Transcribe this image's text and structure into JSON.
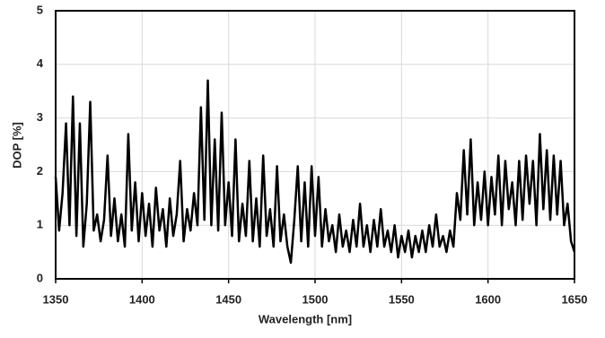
{
  "chart_data": {
    "type": "line",
    "x_label": "Wavelength [nm]",
    "y_label": "DOP [%]",
    "x": [
      1350,
      1352,
      1354,
      1356,
      1358,
      1360,
      1362,
      1364,
      1366,
      1368,
      1370,
      1372,
      1374,
      1376,
      1378,
      1380,
      1382,
      1384,
      1386,
      1388,
      1390,
      1392,
      1394,
      1396,
      1398,
      1400,
      1402,
      1404,
      1406,
      1408,
      1410,
      1412,
      1414,
      1416,
      1418,
      1420,
      1422,
      1424,
      1426,
      1428,
      1430,
      1432,
      1434,
      1436,
      1438,
      1440,
      1442,
      1444,
      1446,
      1448,
      1450,
      1452,
      1454,
      1456,
      1458,
      1460,
      1462,
      1464,
      1466,
      1468,
      1470,
      1472,
      1474,
      1476,
      1478,
      1480,
      1482,
      1484,
      1486,
      1488,
      1490,
      1492,
      1494,
      1496,
      1498,
      1500,
      1502,
      1504,
      1506,
      1508,
      1510,
      1512,
      1514,
      1516,
      1518,
      1520,
      1522,
      1524,
      1526,
      1528,
      1530,
      1532,
      1534,
      1536,
      1538,
      1540,
      1542,
      1544,
      1546,
      1548,
      1550,
      1552,
      1554,
      1556,
      1558,
      1560,
      1562,
      1564,
      1566,
      1568,
      1570,
      1572,
      1574,
      1576,
      1578,
      1580,
      1582,
      1584,
      1586,
      1588,
      1590,
      1592,
      1594,
      1596,
      1598,
      1600,
      1602,
      1604,
      1606,
      1608,
      1610,
      1612,
      1614,
      1616,
      1618,
      1620,
      1622,
      1624,
      1626,
      1628,
      1630,
      1632,
      1634,
      1636,
      1638,
      1640,
      1642,
      1644,
      1646,
      1648,
      1650
    ],
    "series": [
      {
        "color": "#000000",
        "values": [
          1.9,
          0.9,
          1.6,
          2.9,
          1.0,
          3.4,
          0.8,
          2.9,
          0.6,
          1.4,
          3.3,
          0.9,
          1.2,
          0.7,
          1.1,
          2.3,
          0.8,
          1.5,
          0.7,
          1.2,
          0.6,
          2.7,
          0.9,
          1.8,
          0.7,
          1.6,
          0.8,
          1.4,
          0.6,
          1.7,
          0.9,
          1.3,
          0.6,
          1.5,
          0.8,
          1.2,
          2.2,
          0.7,
          1.3,
          0.9,
          1.6,
          1.0,
          3.2,
          1.1,
          3.7,
          1.0,
          2.6,
          0.9,
          3.1,
          1.0,
          1.8,
          0.8,
          2.6,
          0.7,
          1.4,
          0.8,
          2.2,
          0.7,
          1.5,
          0.6,
          2.3,
          0.8,
          1.3,
          0.6,
          2.1,
          0.7,
          1.2,
          0.6,
          0.3,
          1.1,
          2.1,
          0.7,
          1.8,
          0.6,
          2.1,
          0.8,
          1.9,
          0.6,
          1.3,
          0.7,
          1.0,
          0.5,
          1.2,
          0.6,
          0.9,
          0.5,
          1.1,
          0.6,
          1.4,
          0.6,
          1.0,
          0.5,
          1.1,
          0.6,
          1.3,
          0.6,
          0.9,
          0.5,
          1.0,
          0.4,
          0.8,
          0.5,
          0.9,
          0.4,
          0.8,
          0.5,
          0.9,
          0.5,
          1.0,
          0.6,
          1.2,
          0.6,
          0.8,
          0.5,
          0.9,
          0.6,
          1.6,
          1.1,
          2.4,
          1.2,
          2.6,
          1.0,
          1.8,
          1.1,
          2.0,
          1.0,
          1.9,
          1.2,
          2.3,
          1.0,
          2.2,
          1.3,
          1.8,
          1.0,
          2.2,
          1.1,
          2.3,
          1.4,
          2.2,
          1.0,
          2.7,
          1.3,
          2.4,
          1.1,
          2.3,
          1.2,
          2.2,
          1.0,
          1.4,
          0.7,
          0.5
        ]
      }
    ],
    "xlim": [
      1350,
      1650
    ],
    "xticks": [
      1350,
      1400,
      1450,
      1500,
      1550,
      1600,
      1650
    ],
    "ylim": [
      0,
      5
    ],
    "yticks": [
      0,
      1,
      2,
      3,
      4,
      5
    ],
    "grid": true
  }
}
